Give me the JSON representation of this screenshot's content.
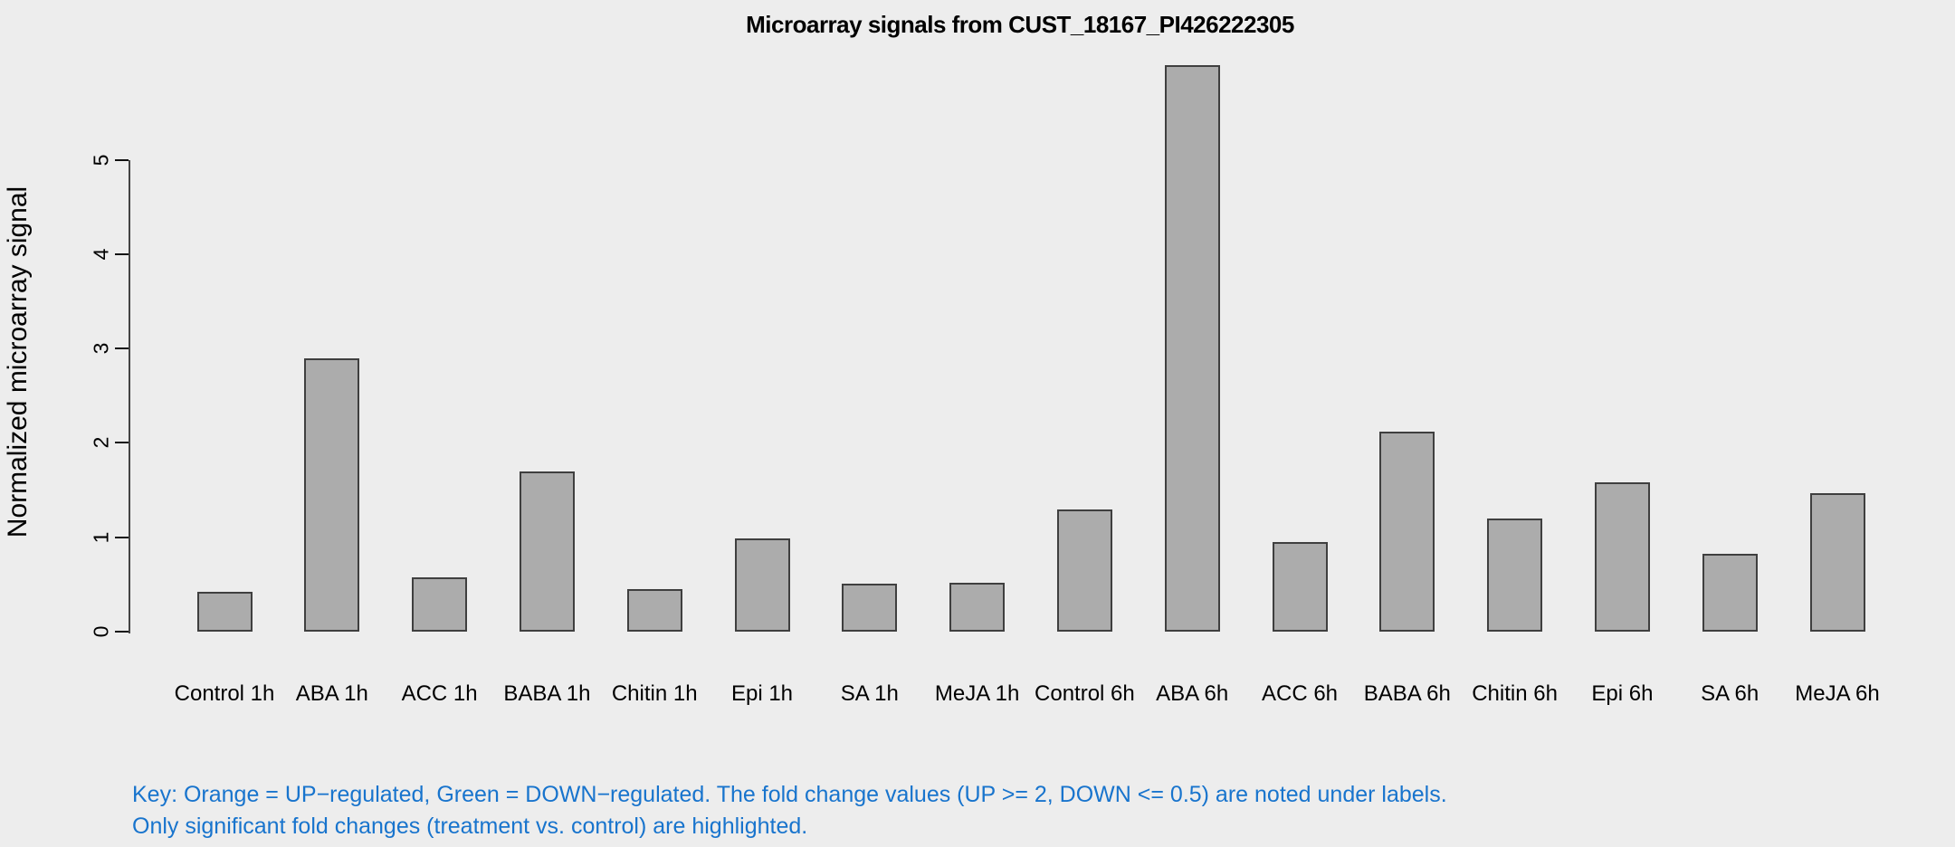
{
  "background": "#EDEDED",
  "axis_color": "#444444",
  "chart_data": {
    "type": "bar",
    "title": "Microarray signals from CUST_18167_PI426222305",
    "ylabel": "Normalized microarray signal",
    "xlabel": "",
    "categories": [
      "Control 1h",
      "ABA 1h",
      "ACC 1h",
      "BABA 1h",
      "Chitin 1h",
      "Epi 1h",
      "SA 1h",
      "MeJA 1h",
      "Control 6h",
      "ABA 6h",
      "ACC 6h",
      "BABA 6h",
      "Chitin 6h",
      "Epi 6h",
      "SA 6h",
      "MeJA 6h"
    ],
    "values": [
      0.42,
      2.9,
      0.58,
      1.7,
      0.45,
      0.99,
      0.51,
      0.52,
      1.29,
      6.0,
      0.95,
      2.12,
      1.2,
      1.58,
      0.82,
      1.47
    ],
    "yticks": [
      0,
      1,
      2,
      3,
      4,
      5
    ],
    "ylim": [
      0,
      6.05
    ],
    "grid": false,
    "legend": "none",
    "bar_fill": "#ACACAC",
    "bar_border": "#3F3F3F"
  },
  "key_note": {
    "line1": "Key: Orange = UP−regulated, Green = DOWN−regulated. The fold change values (UP >= 2, DOWN <= 0.5) are noted under labels.",
    "line2": "Only significant fold changes (treatment vs. control) are highlighted.",
    "color": "#1874CD"
  }
}
